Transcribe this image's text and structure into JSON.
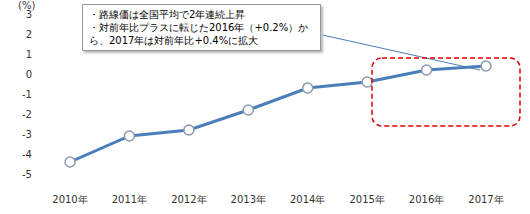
{
  "chart_data": {
    "type": "line",
    "y_label": "(%)",
    "categories": [
      "2010年",
      "2011年",
      "2012年",
      "2013年",
      "2014年",
      "2015年",
      "2016年",
      "2017年"
    ],
    "values": [
      -4.4,
      -3.1,
      -2.8,
      -1.8,
      -0.7,
      -0.4,
      0.2,
      0.4
    ],
    "color": "#4a7ebb",
    "marker": "circle",
    "ylim": [
      -5,
      3
    ],
    "yticks": [
      -5,
      -4,
      -3,
      -2,
      -1,
      0,
      1,
      2,
      3
    ],
    "grid": false,
    "annotations": [
      "・路線価は全国平均で2年連続上昇",
      "・対前年比プラスに転じた2016年（+0.2%）から、2017年は対前年比+0.4%に拡大"
    ]
  }
}
